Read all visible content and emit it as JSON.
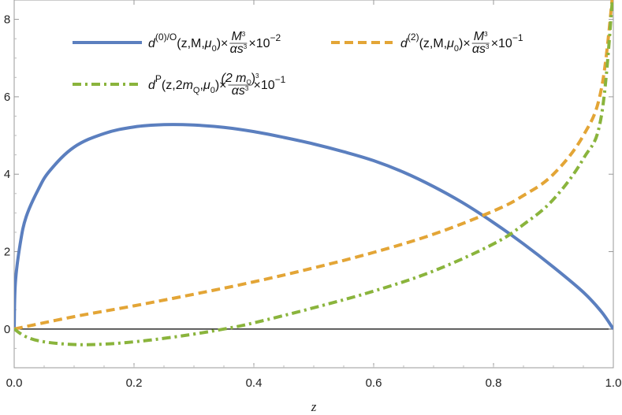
{
  "chart_data": {
    "type": "line",
    "xlabel": "z",
    "ylabel": "",
    "xlim": [
      0.0,
      1.0
    ],
    "ylim": [
      -1.0,
      8.5
    ],
    "x_ticks": [
      "0.0",
      "0.2",
      "0.4",
      "0.6",
      "0.8",
      "1.0"
    ],
    "y_ticks": [
      "0",
      "2",
      "4",
      "6",
      "8"
    ],
    "series": [
      {
        "name": "d(0)/O(z,M,μ0)×M3/αs3×10−2",
        "color": "#5b7fbf",
        "style": "solid",
        "x": [
          0,
          0.002,
          0.01,
          0.02,
          0.04,
          0.06,
          0.1,
          0.15,
          0.2,
          0.25,
          0.3,
          0.35,
          0.4,
          0.45,
          0.5,
          0.55,
          0.6,
          0.65,
          0.7,
          0.75,
          0.8,
          0.85,
          0.9,
          0.95,
          0.98,
          1.0
        ],
        "y": [
          0,
          1.2,
          2.2,
          2.9,
          3.6,
          4.1,
          4.7,
          5.05,
          5.22,
          5.28,
          5.27,
          5.21,
          5.1,
          4.95,
          4.78,
          4.58,
          4.35,
          4.05,
          3.68,
          3.25,
          2.75,
          2.2,
          1.6,
          0.95,
          0.45,
          0
        ]
      },
      {
        "name": "d(2)(z,M,μ0)×M3/αs3×10−1",
        "color": "#e3a536",
        "style": "dashed",
        "x": [
          0,
          0.1,
          0.2,
          0.3,
          0.4,
          0.5,
          0.6,
          0.7,
          0.8,
          0.85,
          0.9,
          0.95,
          0.98,
          1.0
        ],
        "y": [
          0,
          0.32,
          0.6,
          0.9,
          1.22,
          1.58,
          1.98,
          2.45,
          3.05,
          3.45,
          4.0,
          5.0,
          6.2,
          8.8
        ]
      },
      {
        "name": "dP(z,2mQ,μ0)×(2mQ)3/αs3×10−1",
        "color": "#8ab43c",
        "style": "dashdot",
        "x": [
          0,
          0.02,
          0.05,
          0.1,
          0.15,
          0.2,
          0.25,
          0.3,
          0.35,
          0.4,
          0.5,
          0.6,
          0.7,
          0.8,
          0.85,
          0.9,
          0.95,
          0.98,
          1.0
        ],
        "y": [
          0,
          -0.2,
          -0.33,
          -0.4,
          -0.39,
          -0.33,
          -0.24,
          -0.13,
          0,
          0.16,
          0.55,
          0.98,
          1.5,
          2.2,
          2.7,
          3.35,
          4.4,
          5.5,
          8.8
        ]
      }
    ],
    "legend": {
      "placement": "top",
      "entries": [
        {
          "prefix": "d",
          "sup": "(0)/O",
          "args": "(z,M,",
          "mu": "μ",
          "mu_sub": "0",
          "close": ")×",
          "num": "M",
          "num_sup": "3",
          "den": "αs",
          "den_sup": "3",
          "scale": "×10",
          "scale_sup": "−2"
        },
        {
          "prefix": "d",
          "sup": "(2)",
          "args": "(z,M,",
          "mu": "μ",
          "mu_sub": "0",
          "close": ")×",
          "num": "M",
          "num_sup": "3",
          "den": "αs",
          "den_sup": "3",
          "scale": "×10",
          "scale_sup": "−1"
        },
        {
          "prefix": "d",
          "sup": "P",
          "args": "(z,2",
          "m": "m",
          "m_sub": "Q",
          "args2": ",",
          "mu": "μ",
          "mu_sub": "0",
          "close": ")×",
          "num": "(2 m",
          "num_sub": "Q",
          "num_close": ")",
          "num_sup": "3",
          "den": "αs",
          "den_sup": "3",
          "scale": "×10",
          "scale_sup": "−1"
        }
      ]
    },
    "grid": false
  }
}
